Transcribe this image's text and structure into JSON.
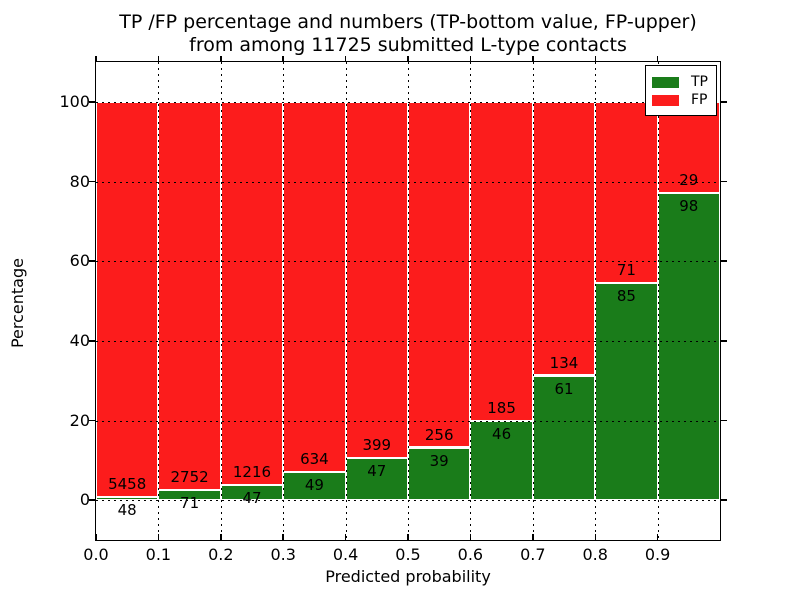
{
  "title": {
    "line1": "TP /FP percentage and numbers (TP-bottom value, FP-upper)",
    "line2": "from among 11725 submitted L-type contacts"
  },
  "axes": {
    "xlabel": "Predicted probability",
    "ylabel": "Percentage",
    "x_ticks": [
      0.0,
      0.1,
      0.2,
      0.3,
      0.4,
      0.5,
      0.6,
      0.7,
      0.8,
      0.9
    ],
    "x_tick_labels": [
      "0.0",
      "0.1",
      "0.2",
      "0.3",
      "0.4",
      "0.5",
      "0.6",
      "0.7",
      "0.8",
      "0.9"
    ],
    "y_ticks": [
      0,
      20,
      40,
      60,
      80,
      100
    ],
    "y_tick_labels": [
      "0",
      "20",
      "40",
      "60",
      "80",
      "100"
    ],
    "xlim": [
      0.0,
      1.0
    ],
    "ylim": [
      -10,
      110
    ],
    "grid_style": "dotted"
  },
  "legend": {
    "position": "upper-right",
    "items": [
      {
        "label": "TP",
        "color": "#1a7c1a"
      },
      {
        "label": "FP",
        "color": "#fc1c1c"
      }
    ]
  },
  "colors": {
    "tp": "#1a7c1a",
    "fp": "#fc1c1c",
    "bar_edge": "#ffffff",
    "grid": "#000000"
  },
  "chart_data": {
    "type": "bar",
    "stacked": true,
    "normalized_to": 100,
    "title": "TP /FP percentage and numbers (TP-bottom value, FP-upper) from among 11725 submitted L-type contacts",
    "xlabel": "Predicted probability",
    "ylabel": "Percentage",
    "total_contacts": 11725,
    "bin_width": 0.1,
    "bin_starts": [
      0.0,
      0.1,
      0.2,
      0.3,
      0.4,
      0.5,
      0.6,
      0.7,
      0.8,
      0.9
    ],
    "series": [
      {
        "name": "TP",
        "color": "#1a7c1a",
        "counts": [
          48,
          71,
          47,
          49,
          47,
          39,
          46,
          61,
          85,
          98
        ]
      },
      {
        "name": "FP",
        "color": "#fc1c1c",
        "counts": [
          5458,
          2752,
          1216,
          634,
          399,
          256,
          185,
          134,
          71,
          29
        ]
      }
    ],
    "tp_percent": [
      0.87,
      2.52,
      3.72,
      7.17,
      10.54,
      13.22,
      19.91,
      31.28,
      54.49,
      77.17
    ],
    "xlim": [
      0.0,
      1.0
    ],
    "ylim": [
      -10,
      110
    ],
    "grid": true,
    "legend_position": "upper-right"
  }
}
